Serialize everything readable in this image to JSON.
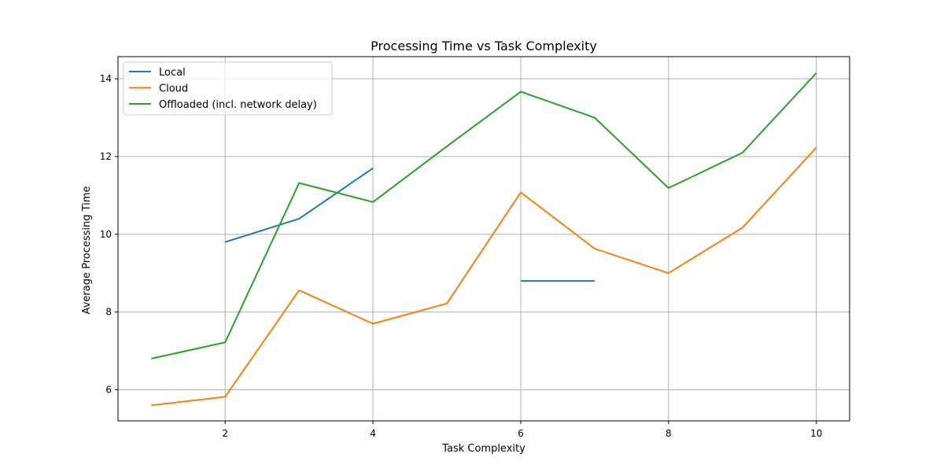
{
  "chart_data": {
    "type": "line",
    "title": "Processing Time vs Task Complexity",
    "xlabel": "Task Complexity",
    "ylabel": "Average Processing Time",
    "xlim": [
      0.55,
      10.45
    ],
    "ylim": [
      5.2,
      14.57
    ],
    "xticks": [
      2,
      4,
      6,
      8,
      10
    ],
    "yticks": [
      6,
      8,
      10,
      12,
      14
    ],
    "grid": true,
    "legend_position": "top-left",
    "x": [
      1,
      2,
      3,
      4,
      5,
      6,
      7,
      8,
      9,
      10
    ],
    "series": [
      {
        "name": "Local",
        "color": "#1f77b4",
        "values": [
          null,
          9.8,
          10.4,
          11.7,
          null,
          8.8,
          8.8,
          null,
          null,
          null
        ]
      },
      {
        "name": "Cloud",
        "color": "#ff7f0e",
        "values": [
          5.6,
          5.82,
          8.56,
          7.7,
          8.22,
          11.08,
          9.63,
          9.0,
          10.17,
          12.23
        ]
      },
      {
        "name": "Offloaded (incl. network delay)",
        "color": "#2ca02c",
        "values": [
          6.8,
          7.22,
          11.32,
          10.83,
          12.26,
          13.67,
          13.0,
          11.19,
          12.1,
          14.15
        ]
      }
    ]
  }
}
